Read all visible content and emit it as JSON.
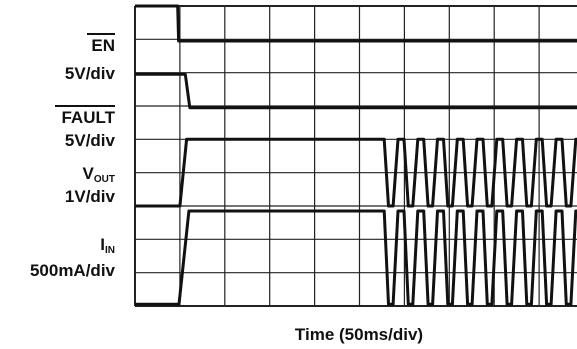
{
  "chart_data": {
    "type": "line",
    "xlabel": "Time (50ms/div)",
    "divisions": {
      "x": 10,
      "y": 9
    },
    "channels": [
      {
        "id": "en",
        "name": "EN",
        "name_sub": "",
        "overline": true,
        "scale": "5V/div",
        "points": [
          [
            0,
            9.0
          ],
          [
            0.95,
            9.0
          ],
          [
            0.97,
            7.95
          ],
          [
            10,
            7.95
          ]
        ]
      },
      {
        "id": "fault",
        "name": "FAULT",
        "name_sub": "",
        "overline": true,
        "scale": "5V/div",
        "points": [
          [
            0,
            6.95
          ],
          [
            1.12,
            6.95
          ],
          [
            1.22,
            5.95
          ],
          [
            10,
            5.95
          ]
        ]
      },
      {
        "id": "vout",
        "name": "V",
        "name_sub": "OUT",
        "overline": false,
        "scale": "1V/div",
        "high": 5.0,
        "low": 3.0,
        "risetime": 1.0,
        "settle": 1.15,
        "oscillation_start": 5.55,
        "cycles": 10
      },
      {
        "id": "iin",
        "name": "I",
        "name_sub": "IN",
        "overline": false,
        "scale": "500mA/div",
        "high": 2.85,
        "low": 0.05,
        "risetime": 0.98,
        "settle": 1.2,
        "oscillation_start": 5.55,
        "cycles": 10
      }
    ]
  }
}
